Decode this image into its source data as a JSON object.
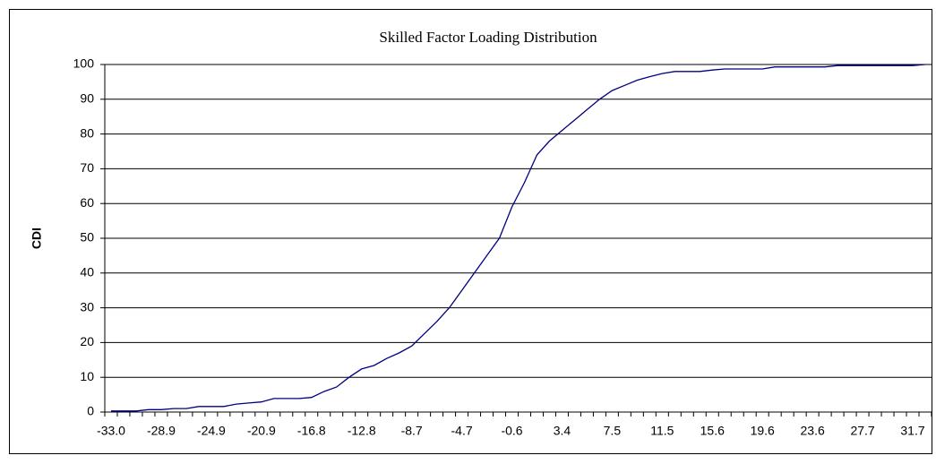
{
  "chart_data": {
    "type": "line",
    "title": "Skilled Factor Loading Distribution",
    "y_label": "CDI",
    "categories": [
      "-33.0",
      null,
      null,
      null,
      "-28.9",
      null,
      null,
      null,
      "-24.9",
      null,
      null,
      null,
      "-20.9",
      null,
      null,
      null,
      "-16.8",
      null,
      null,
      null,
      "-12.8",
      null,
      null,
      null,
      "-8.7",
      null,
      null,
      null,
      "-4.7",
      null,
      null,
      null,
      "-0.6",
      null,
      null,
      null,
      "3.4",
      null,
      null,
      null,
      "7.5",
      null,
      null,
      null,
      "11.5",
      null,
      null,
      null,
      "15.6",
      null,
      null,
      null,
      "19.6",
      null,
      null,
      null,
      "23.6",
      null,
      null,
      null,
      "27.7",
      null,
      null,
      null,
      "31.7",
      null
    ],
    "series": [
      {
        "name": "CDI",
        "color": "#000080",
        "values": [
          0.3,
          0.3,
          0.3,
          0.7,
          0.7,
          1.0,
          1.0,
          1.6,
          1.6,
          1.6,
          2.3,
          2.6,
          2.9,
          3.9,
          3.9,
          3.9,
          4.2,
          5.9,
          7.2,
          10,
          12.4,
          13.4,
          15.4,
          17,
          19,
          22.5,
          26,
          30,
          35,
          40,
          45,
          50,
          59,
          66,
          74,
          78,
          81,
          84,
          87,
          90,
          92.5,
          94,
          95.5,
          96.5,
          97.4,
          98,
          98,
          98,
          98.4,
          98.7,
          98.7,
          98.7,
          98.7,
          99.3,
          99.3,
          99.3,
          99.3,
          99.3,
          99.7,
          99.7,
          99.7,
          99.7,
          99.7,
          99.7,
          99.7,
          100
        ]
      }
    ],
    "ylim": [
      0,
      100
    ],
    "yticks": [
      0,
      10,
      20,
      30,
      40,
      50,
      60,
      70,
      80,
      90,
      100
    ],
    "grid": true
  }
}
